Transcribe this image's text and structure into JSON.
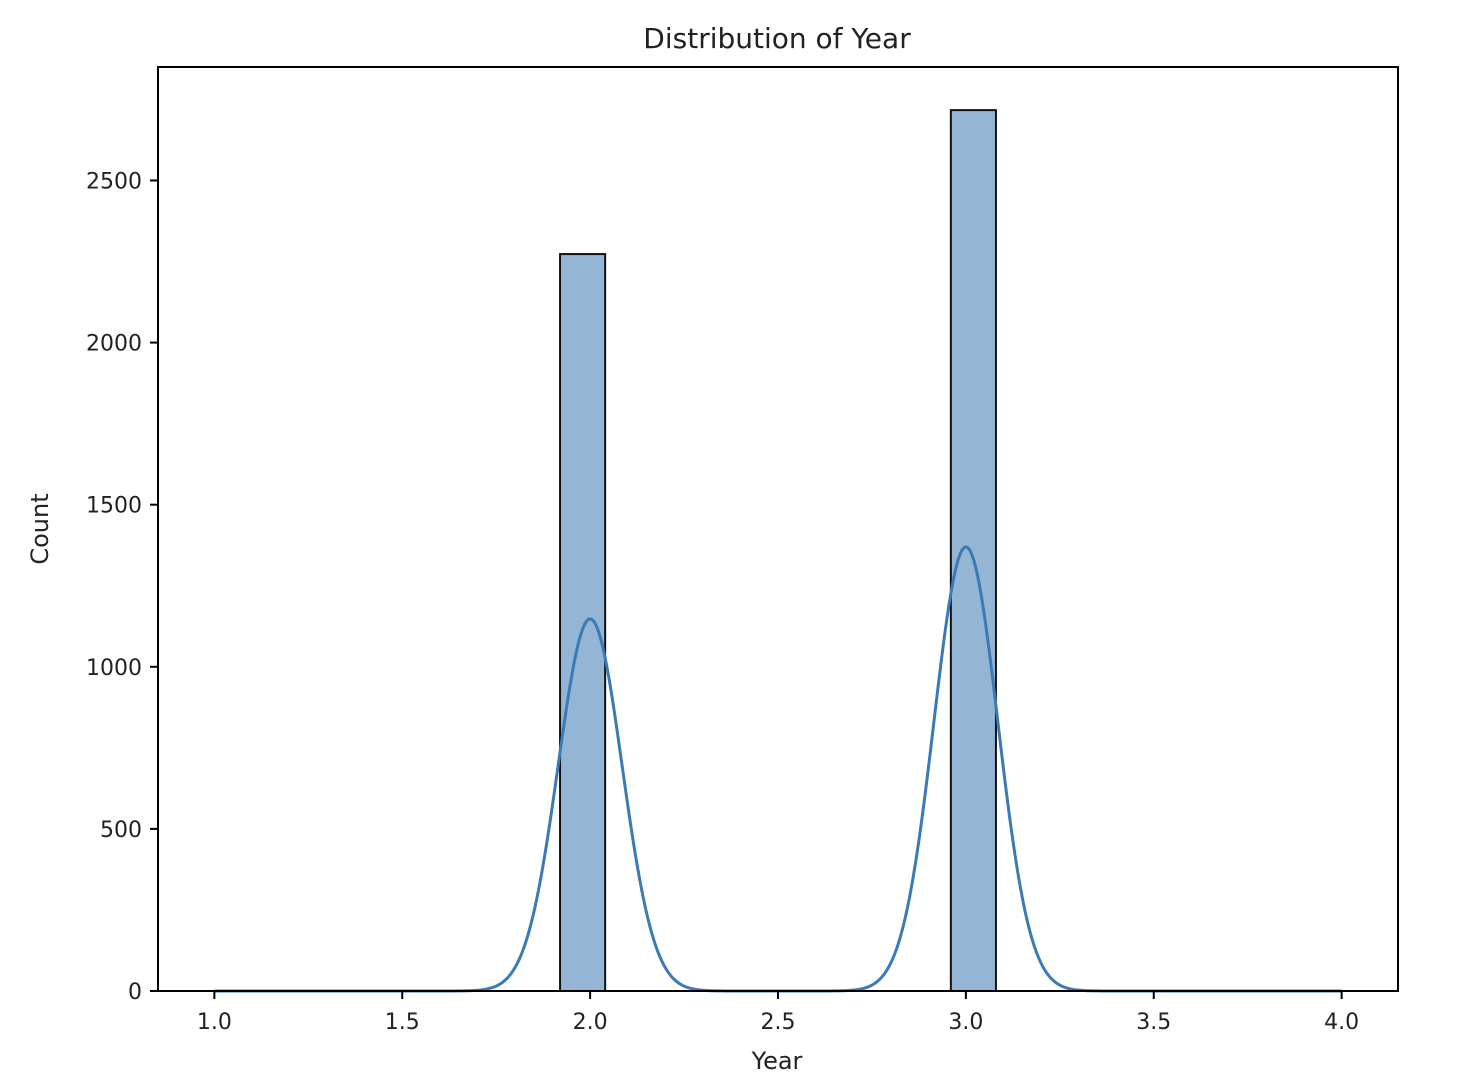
{
  "chart_data": {
    "type": "histogram",
    "title": "Distribution of Year",
    "xlabel": "Year",
    "ylabel": "Count",
    "xlim": [
      0.85,
      4.15
    ],
    "ylim": [
      0,
      2850
    ],
    "x_ticks": [
      1.0,
      1.5,
      2.0,
      2.5,
      3.0,
      3.5,
      4.0
    ],
    "x_tick_labels": [
      "1.0",
      "1.5",
      "2.0",
      "2.5",
      "3.0",
      "3.5",
      "4.0"
    ],
    "y_ticks": [
      0,
      500,
      1000,
      1500,
      2000,
      2500
    ],
    "y_tick_labels": [
      "0",
      "500",
      "1000",
      "1500",
      "2000",
      "2500"
    ],
    "grid": false,
    "bars": [
      {
        "x_start": 1.92,
        "x_end": 2.04,
        "count": 2273
      },
      {
        "x_start": 2.96,
        "x_end": 3.08,
        "count": 2717
      }
    ],
    "kde": {
      "name": "KDE",
      "x_min": 1.0,
      "x_max": 4.0,
      "peaks": [
        {
          "center": 2.0,
          "height": 1148,
          "sigma": 0.085
        },
        {
          "center": 3.0,
          "height": 1370,
          "sigma": 0.085
        }
      ]
    },
    "colors": {
      "bar_fill": "#94b6d4",
      "bar_edge": "#111111",
      "kde_line": "#3a7ab5",
      "axis": "#000000",
      "text": "#222222"
    }
  }
}
